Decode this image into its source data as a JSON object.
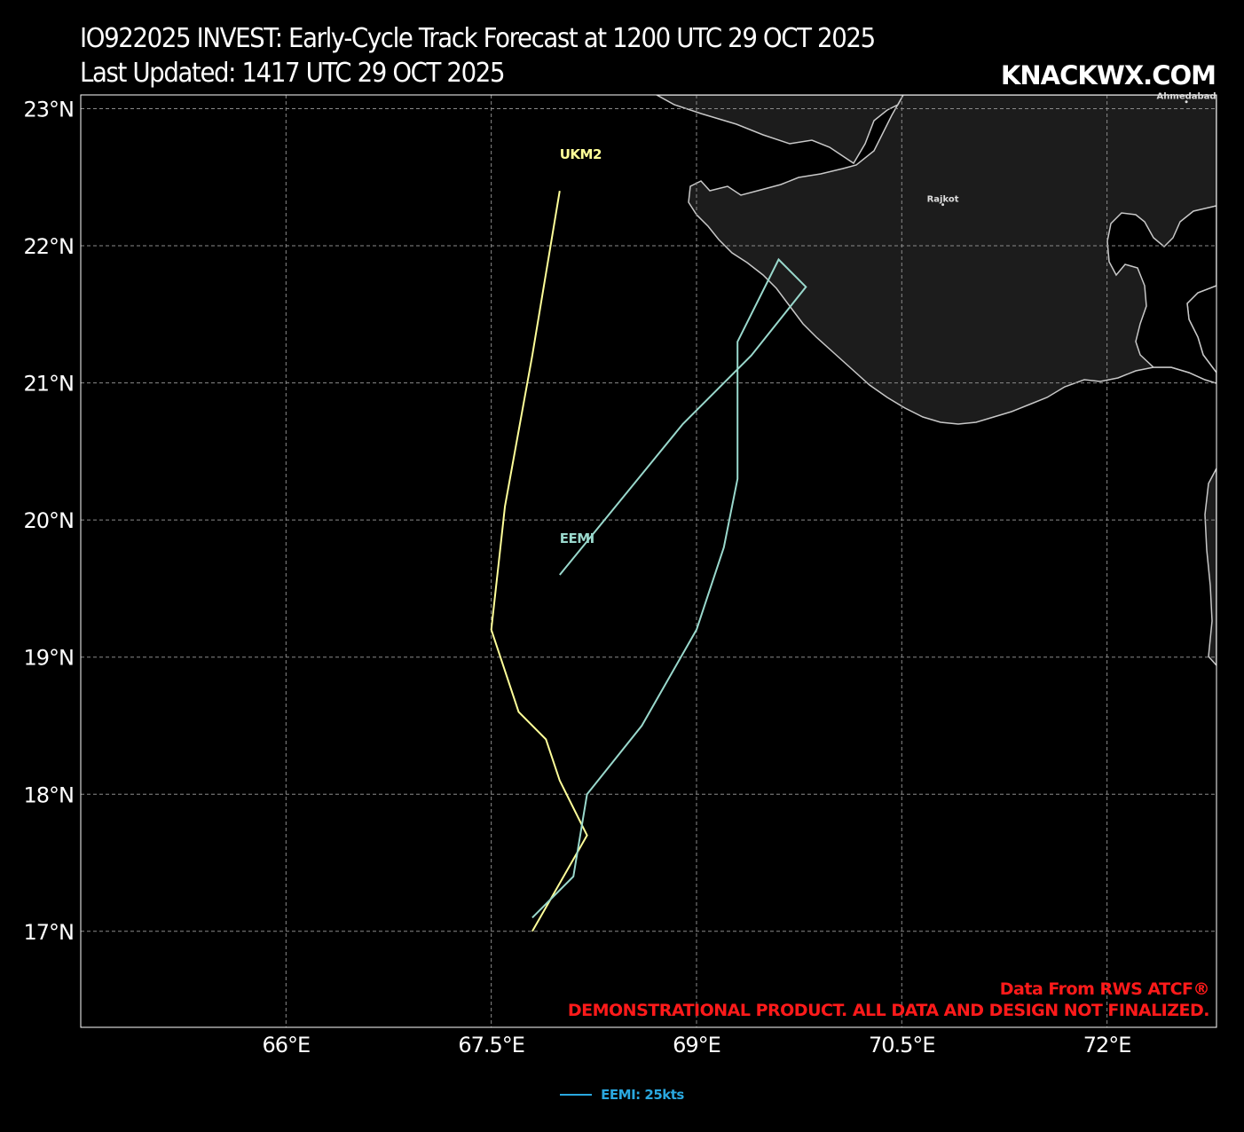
{
  "header": {
    "title_line1": "IO922025 INVEST: Early-Cycle Track Forecast at 1200 UTC 29 OCT 2025",
    "title_line2": "Last Updated: 1417 UTC 29 OCT 2025",
    "brand": "KNACKWX.COM"
  },
  "credits": {
    "line1": "Data From RWS ATCF®",
    "line2": "DEMONSTRATIONAL PRODUCT. ALL DATA AND DESIGN NOT FINALIZED."
  },
  "colors": {
    "background": "#000000",
    "land": "#1c1c1c",
    "coastline": "#c8c8c8",
    "grid": "#8a8a8a",
    "ukm2": "#ffff99",
    "eemi": "#99d8cc",
    "legend": "#2aa8e0",
    "credit": "#ff1a1a"
  },
  "legend": {
    "entries": [
      {
        "label": "EEMI: 25kts",
        "color": "#2aa8e0"
      }
    ]
  },
  "map": {
    "cities": [
      {
        "name": "Ahmedabad",
        "lon": 72.58,
        "lat": 23.05
      },
      {
        "name": "Rajkot",
        "lon": 70.8,
        "lat": 22.3
      }
    ]
  },
  "chart_data": {
    "type": "line",
    "title": "IO922025 INVEST: Early-Cycle Track Forecast at 1200 UTC 29 OCT 2025",
    "xlabel": "",
    "ylabel": "",
    "xlim": [
      64.5,
      72.8
    ],
    "ylim": [
      16.3,
      23.1
    ],
    "x_ticks": [
      66,
      67.5,
      69,
      70.5,
      72
    ],
    "x_tick_labels": [
      "66°E",
      "67.5°E",
      "69°E",
      "70.5°E",
      "72°E"
    ],
    "y_ticks": [
      17,
      18,
      19,
      20,
      21,
      22,
      23
    ],
    "y_tick_labels": [
      "17°N",
      "18°N",
      "19°N",
      "20°N",
      "21°N",
      "22°N",
      "23°N"
    ],
    "grid": true,
    "legend_position": "bottom-center",
    "series": [
      {
        "name": "UKM2",
        "color": "#ffff99",
        "points": [
          [
            67.8,
            17.0
          ],
          [
            68.2,
            17.7
          ],
          [
            68.0,
            18.1
          ],
          [
            67.9,
            18.4
          ],
          [
            67.7,
            18.6
          ],
          [
            67.5,
            19.2
          ],
          [
            67.6,
            20.1
          ],
          [
            67.8,
            21.2
          ],
          [
            68.0,
            22.4
          ]
        ]
      },
      {
        "name": "EEMI",
        "color": "#99d8cc",
        "points": [
          [
            67.8,
            17.1
          ],
          [
            68.1,
            17.4
          ],
          [
            68.2,
            18.0
          ],
          [
            68.6,
            18.5
          ],
          [
            69.0,
            19.2
          ],
          [
            69.2,
            19.8
          ],
          [
            69.3,
            20.3
          ],
          [
            69.3,
            21.3
          ],
          [
            69.6,
            21.9
          ],
          [
            69.8,
            21.7
          ],
          [
            69.4,
            21.2
          ],
          [
            68.9,
            20.7
          ],
          [
            68.0,
            19.6
          ]
        ]
      }
    ]
  }
}
